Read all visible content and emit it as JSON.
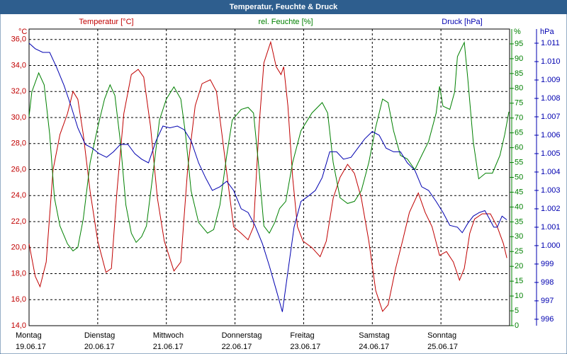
{
  "chart_data": {
    "type": "line",
    "title": "Temperatur, Feuchte & Druck",
    "xlim": [
      0,
      7
    ],
    "xticks": [
      {
        "value": 0,
        "label": "Montag",
        "date": "19.06.17"
      },
      {
        "value": 1,
        "label": "Dienstag",
        "date": "20.06.17"
      },
      {
        "value": 2,
        "label": "Mittwoch",
        "date": "21.06.17"
      },
      {
        "value": 3,
        "label": "Donnerstag",
        "date": "22.06.17"
      },
      {
        "value": 4,
        "label": "Freitag",
        "date": "23.06.17"
      },
      {
        "value": 5,
        "label": "Samstag",
        "date": "24.06.17"
      },
      {
        "value": 6,
        "label": "Sonntag",
        "date": "25.06.17"
      }
    ],
    "ylim": [
      14,
      36.8
    ],
    "ylabel": "°C",
    "yticks": [
      {
        "value": 14,
        "label": "14,0"
      },
      {
        "value": 16,
        "label": "16,0"
      },
      {
        "value": 18,
        "label": "18,0"
      },
      {
        "value": 20,
        "label": "20,0"
      },
      {
        "value": 22,
        "label": "22,0"
      },
      {
        "value": 24,
        "label": "24,0"
      },
      {
        "value": 26,
        "label": "26,0"
      },
      {
        "value": 28,
        "label": "28,0"
      },
      {
        "value": 30,
        "label": "30,0"
      },
      {
        "value": 32,
        "label": "32,0"
      },
      {
        "value": 34,
        "label": "34,0"
      },
      {
        "value": 36,
        "label": "36,0"
      }
    ],
    "y2lim": [
      0,
      100
    ],
    "y2label": "%",
    "y2ticks": [
      0,
      5,
      10,
      15,
      20,
      25,
      30,
      35,
      40,
      45,
      50,
      55,
      60,
      65,
      70,
      75,
      80,
      85,
      90,
      95
    ],
    "y3lim": [
      995.65,
      1011.77
    ],
    "y3label": "hPa",
    "y3ticks": [
      996,
      997,
      998,
      999,
      {
        "value": 1000,
        "label": "1.000"
      },
      {
        "value": 1001,
        "label": "1.001"
      },
      {
        "value": 1002,
        "label": "1.002"
      },
      {
        "value": 1003,
        "label": "1.003"
      },
      {
        "value": 1004,
        "label": "1.004"
      },
      {
        "value": 1005,
        "label": "1.005"
      },
      {
        "value": 1006,
        "label": "1.006"
      },
      {
        "value": 1007,
        "label": "1.007"
      },
      {
        "value": 1008,
        "label": "1.008"
      },
      {
        "value": 1009,
        "label": "1.009"
      },
      {
        "value": 1010,
        "label": "1.010"
      },
      {
        "value": 1011,
        "label": "1.011"
      }
    ],
    "grid": true,
    "series": [
      {
        "name": "Temperatur [°C]",
        "color": "#c00000",
        "axis": "y",
        "x": [
          0,
          0.09,
          0.16,
          0.25,
          0.35,
          0.45,
          0.56,
          0.64,
          0.71,
          0.79,
          0.89,
          1.0,
          1.12,
          1.2,
          1.28,
          1.38,
          1.49,
          1.59,
          1.67,
          1.77,
          1.87,
          1.97,
          2.11,
          2.21,
          2.31,
          2.42,
          2.52,
          2.64,
          2.73,
          2.81,
          2.9,
          2.98,
          3.09,
          3.19,
          3.27,
          3.35,
          3.42,
          3.52,
          3.6,
          3.67,
          3.71,
          3.77,
          3.84,
          3.91,
          3.99,
          4.12,
          4.24,
          4.33,
          4.43,
          4.53,
          4.64,
          4.74,
          4.84,
          4.95,
          5.05,
          5.15,
          5.23,
          5.34,
          5.44,
          5.54,
          5.67,
          5.77,
          5.87,
          5.98,
          6.08,
          6.18,
          6.27,
          6.34,
          6.42,
          6.49,
          6.6,
          6.72,
          6.82,
          6.91,
          6.96
        ],
        "values": [
          20.3,
          17.8,
          17.0,
          18.9,
          26.0,
          28.7,
          30.3,
          32.0,
          31.4,
          28.7,
          24.3,
          20.5,
          18.1,
          18.4,
          24.3,
          30.3,
          33.3,
          33.7,
          33.1,
          29.3,
          23.8,
          20.5,
          18.2,
          18.9,
          26.0,
          30.9,
          32.6,
          32.9,
          32.0,
          28.7,
          24.9,
          21.6,
          21.1,
          20.6,
          21.6,
          29.3,
          34.2,
          35.8,
          33.9,
          33.3,
          33.9,
          30.9,
          25.4,
          21.6,
          20.5,
          20.0,
          19.3,
          20.5,
          23.8,
          25.4,
          26.4,
          25.7,
          23.8,
          20.5,
          16.7,
          15.1,
          15.6,
          18.4,
          20.5,
          22.7,
          24.2,
          22.7,
          21.6,
          19.4,
          19.7,
          18.9,
          17.5,
          18.4,
          21.1,
          22.2,
          22.6,
          22.6,
          21.6,
          20.3,
          19.2
        ]
      },
      {
        "name": "rel. Feuchte [%]",
        "color": "#008000",
        "axis": "y2",
        "x": [
          0,
          0.04,
          0.14,
          0.22,
          0.3,
          0.37,
          0.45,
          0.56,
          0.64,
          0.71,
          0.79,
          0.89,
          1.0,
          1.1,
          1.18,
          1.25,
          1.33,
          1.41,
          1.49,
          1.56,
          1.64,
          1.71,
          1.8,
          1.9,
          2.0,
          2.11,
          2.21,
          2.28,
          2.36,
          2.47,
          2.6,
          2.69,
          2.78,
          2.88,
          2.96,
          3.09,
          3.19,
          3.27,
          3.35,
          3.42,
          3.5,
          3.58,
          3.65,
          3.74,
          3.84,
          3.96,
          4.12,
          4.27,
          4.35,
          4.43,
          4.53,
          4.64,
          4.74,
          4.84,
          4.95,
          5.05,
          5.15,
          5.23,
          5.31,
          5.41,
          5.51,
          5.62,
          5.72,
          5.82,
          5.93,
          5.98,
          6.03,
          6.13,
          6.2,
          6.24,
          6.29,
          6.34,
          6.39,
          6.47,
          6.55,
          6.65,
          6.75,
          6.86,
          6.93,
          6.99
        ],
        "values": [
          70.5,
          78.8,
          85.2,
          81.2,
          64.5,
          43.1,
          33.6,
          27.6,
          25.2,
          26.4,
          36.0,
          55.0,
          66.9,
          76.4,
          81.2,
          77.6,
          62.1,
          40.7,
          31.2,
          28.1,
          30.0,
          33.6,
          50.2,
          69.3,
          76.4,
          80.5,
          76.4,
          64.5,
          45.5,
          34.8,
          31.2,
          32.4,
          40.7,
          57.4,
          69.3,
          72.9,
          73.6,
          71.7,
          52.6,
          33.6,
          31.2,
          34.8,
          39.5,
          41.9,
          55.0,
          65.7,
          71.7,
          75.2,
          71.7,
          55.0,
          43.1,
          41.2,
          41.9,
          45.5,
          55.0,
          66.9,
          76.4,
          75.2,
          65.7,
          57.4,
          56.2,
          52.6,
          57.4,
          62.1,
          71.7,
          80.7,
          74.0,
          72.9,
          78.8,
          90.7,
          93.1,
          95.5,
          83.6,
          62.1,
          49.5,
          51.4,
          51.4,
          57.4,
          64.5,
          72.1
        ]
      },
      {
        "name": "Druck [hPa]",
        "color": "#0000b0",
        "axis": "y3",
        "x": [
          0,
          0.09,
          0.2,
          0.3,
          0.4,
          0.51,
          0.61,
          0.71,
          0.82,
          0.92,
          1.02,
          1.13,
          1.23,
          1.33,
          1.44,
          1.54,
          1.64,
          1.74,
          1.85,
          1.95,
          2.05,
          2.16,
          2.26,
          2.36,
          2.47,
          2.57,
          2.67,
          2.78,
          2.88,
          2.98,
          3.09,
          3.19,
          3.29,
          3.4,
          3.5,
          3.6,
          3.69,
          3.76,
          3.86,
          3.96,
          4.07,
          4.17,
          4.27,
          4.38,
          4.48,
          4.58,
          4.69,
          4.79,
          4.89,
          5.0,
          5.1,
          5.2,
          5.31,
          5.41,
          5.51,
          5.62,
          5.72,
          5.82,
          5.93,
          6.03,
          6.13,
          6.24,
          6.31,
          6.39,
          6.47,
          6.56,
          6.64,
          6.7,
          6.77,
          6.82,
          6.89,
          6.96
        ],
        "values": [
          1011.0,
          1010.7,
          1010.5,
          1010.5,
          1009.7,
          1008.7,
          1007.6,
          1006.4,
          1005.5,
          1005.3,
          1005.0,
          1004.8,
          1005.1,
          1005.5,
          1005.5,
          1005.0,
          1004.7,
          1004.5,
          1005.7,
          1006.5,
          1006.4,
          1006.5,
          1006.3,
          1005.7,
          1004.5,
          1003.7,
          1003.0,
          1003.2,
          1003.5,
          1003.0,
          1002.0,
          1001.8,
          1001.1,
          1000.1,
          998.9,
          997.6,
          996.4,
          998.3,
          1001.0,
          1002.4,
          1002.7,
          1003.0,
          1003.7,
          1005.1,
          1005.1,
          1004.7,
          1004.8,
          1005.3,
          1005.8,
          1006.2,
          1006.0,
          1005.3,
          1005.1,
          1005.1,
          1004.5,
          1004.1,
          1003.2,
          1003.0,
          1002.4,
          1001.8,
          1001.1,
          1001.0,
          1000.7,
          1001.2,
          1001.6,
          1001.8,
          1001.9,
          1001.5,
          1001.0,
          1001.0,
          1001.6,
          1001.4
        ]
      }
    ]
  }
}
